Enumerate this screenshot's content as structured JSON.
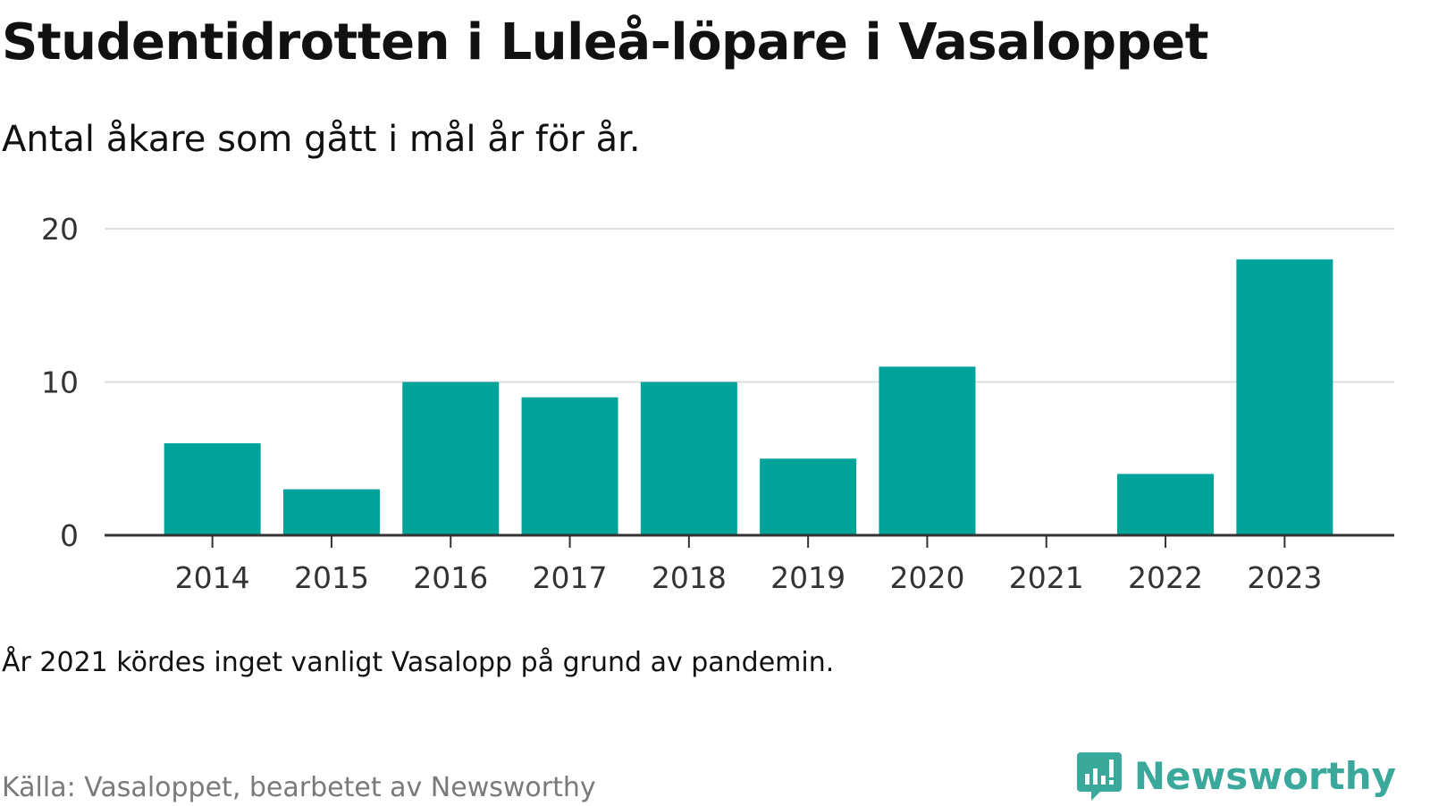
{
  "header": {
    "title": "Studentidrotten i Luleå-löpare i Vasaloppet",
    "subtitle": "Antal åkare som gått i mål år för år."
  },
  "footer": {
    "note": "År 2021 kördes inget vanligt Vasalopp på grund av pandemin.",
    "source": "Källa: Vasaloppet, bearbetet av Newsworthy",
    "brand": "Newsworthy"
  },
  "colors": {
    "bar": "#00a399",
    "grid": "#dddddd",
    "axis": "#333333",
    "tick_text": "#333333",
    "brand": "#3aa99c"
  },
  "chart_data": {
    "type": "bar",
    "title": "Studentidrotten i Luleå-löpare i Vasaloppet",
    "subtitle": "Antal åkare som gått i mål år för år.",
    "categories": [
      "2014",
      "2015",
      "2016",
      "2017",
      "2018",
      "2019",
      "2020",
      "2021",
      "2022",
      "2023"
    ],
    "series": [
      {
        "values": [
          6,
          3,
          10,
          9,
          10,
          5,
          11,
          0,
          4,
          18
        ]
      }
    ],
    "ylim": [
      0,
      20
    ],
    "yticks": [
      0,
      10,
      20
    ],
    "grid": true,
    "legend": false,
    "xlabel": "",
    "ylabel": ""
  }
}
